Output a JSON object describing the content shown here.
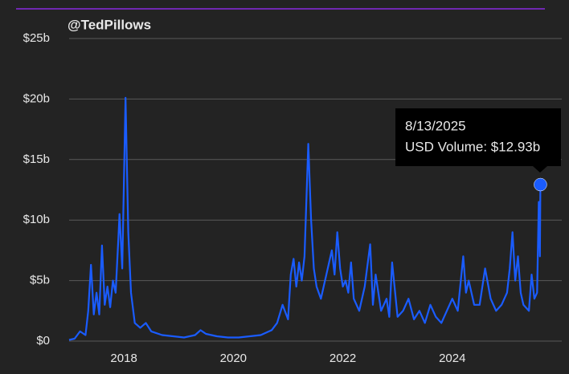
{
  "chart_data": {
    "type": "line",
    "annotations": {
      "watermark": "@TedPillows",
      "tooltip_date": "8/13/2025",
      "tooltip_label": "USD Volume: $12.93b"
    },
    "color": "#1a5cff",
    "grid": true,
    "xlim": [
      2017,
      2026
    ],
    "xticks": [
      2018,
      2020,
      2022,
      2024
    ],
    "ylim": [
      0,
      25
    ],
    "yticks": [
      {
        "value": 0,
        "label": "$0"
      },
      {
        "value": 5,
        "label": "$5b"
      },
      {
        "value": 10,
        "label": "$10b"
      },
      {
        "value": 15,
        "label": "$15b"
      },
      {
        "value": 20,
        "label": "$20b"
      },
      {
        "value": 25,
        "label": "$25b"
      }
    ],
    "x": [
      2017.0,
      2017.1,
      2017.2,
      2017.3,
      2017.35,
      2017.4,
      2017.45,
      2017.5,
      2017.55,
      2017.6,
      2017.65,
      2017.7,
      2017.75,
      2017.8,
      2017.85,
      2017.9,
      2017.92,
      2017.97,
      2018.03,
      2018.08,
      2018.13,
      2018.2,
      2018.3,
      2018.4,
      2018.5,
      2018.7,
      2018.9,
      2019.1,
      2019.3,
      2019.4,
      2019.5,
      2019.7,
      2019.9,
      2020.1,
      2020.3,
      2020.5,
      2020.7,
      2020.8,
      2020.9,
      2021.0,
      2021.05,
      2021.1,
      2021.15,
      2021.2,
      2021.25,
      2021.3,
      2021.37,
      2021.42,
      2021.47,
      2021.52,
      2021.6,
      2021.7,
      2021.8,
      2021.85,
      2021.9,
      2021.95,
      2022.0,
      2022.05,
      2022.1,
      2022.15,
      2022.2,
      2022.3,
      2022.4,
      2022.5,
      2022.55,
      2022.6,
      2022.7,
      2022.8,
      2022.85,
      2022.9,
      2023.0,
      2023.1,
      2023.2,
      2023.3,
      2023.4,
      2023.5,
      2023.6,
      2023.7,
      2023.8,
      2023.9,
      2024.0,
      2024.1,
      2024.2,
      2024.25,
      2024.3,
      2024.4,
      2024.5,
      2024.6,
      2024.7,
      2024.8,
      2024.9,
      2025.0,
      2025.05,
      2025.1,
      2025.15,
      2025.2,
      2025.25,
      2025.3,
      2025.4,
      2025.45,
      2025.5,
      2025.55,
      2025.58,
      2025.6,
      2025.61
    ],
    "values": [
      0.1,
      0.2,
      0.8,
      0.5,
      2.5,
      6.3,
      2.2,
      4,
      2.2,
      7.9,
      3,
      4.5,
      2.8,
      5,
      4,
      8.5,
      10.5,
      6,
      20.1,
      9,
      4,
      1.5,
      1.1,
      1.5,
      0.8,
      0.5,
      0.4,
      0.3,
      0.5,
      0.9,
      0.6,
      0.4,
      0.3,
      0.3,
      0.4,
      0.5,
      0.9,
      1.5,
      3,
      1.8,
      5.5,
      6.8,
      4.5,
      6.5,
      5,
      7,
      16.3,
      10,
      6,
      4.5,
      3.5,
      5.5,
      7.5,
      5.5,
      9,
      6,
      4.5,
      5,
      4,
      6.5,
      3.5,
      2.5,
      4.5,
      8,
      3,
      5.5,
      2.5,
      3.5,
      2,
      6.5,
      2,
      2.5,
      3.5,
      1.8,
      2.5,
      1.5,
      3,
      2,
      1.5,
      2.5,
      3.5,
      2.5,
      7,
      4,
      5,
      3,
      3,
      6,
      3.5,
      2.5,
      3,
      4,
      6,
      9,
      5,
      7,
      4,
      3,
      2.5,
      5.5,
      3.5,
      4,
      11.5,
      7,
      12.93
    ]
  }
}
